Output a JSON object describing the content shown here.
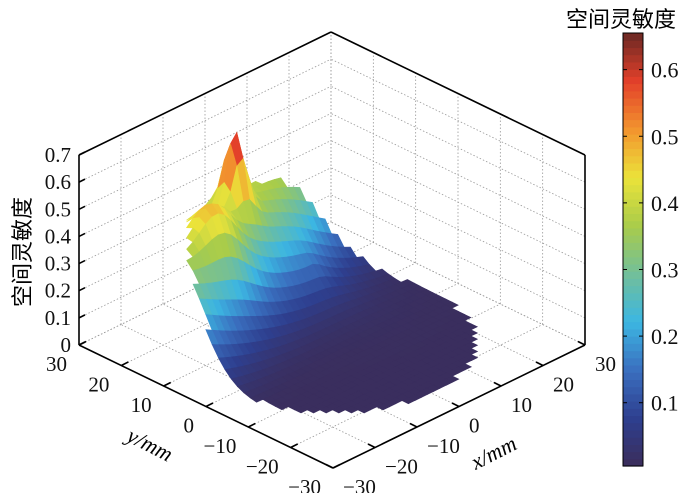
{
  "chart_data": {
    "type": "surface",
    "title": "",
    "xlabel": "x/mm",
    "ylabel": "y/mm",
    "zlabel": "空间灵敏度",
    "colorbar_label": "空间灵敏度",
    "xlim": [
      -30,
      30
    ],
    "ylim": [
      -30,
      30
    ],
    "zlim": [
      0,
      0.7
    ],
    "x_ticks": [
      "−30",
      "−20",
      "−10",
      "0",
      "10",
      "20",
      "30"
    ],
    "x_tick_values": [
      -30,
      -20,
      -10,
      0,
      10,
      20,
      30
    ],
    "y_ticks": [
      "−30",
      "−20",
      "−10",
      "0",
      "10",
      "20",
      "30"
    ],
    "y_tick_values": [
      -30,
      -20,
      -10,
      0,
      10,
      20,
      30
    ],
    "z_ticks": [
      "0",
      "0.1",
      "0.2",
      "0.3",
      "0.4",
      "0.5",
      "0.6",
      "0.7"
    ],
    "z_tick_values": [
      0,
      0.1,
      0.2,
      0.3,
      0.4,
      0.5,
      0.6,
      0.7
    ],
    "colorbar_ticks": [
      "0.1",
      "0.2",
      "0.3",
      "0.4",
      "0.5",
      "0.6"
    ],
    "colorbar_tick_values": [
      0.1,
      0.2,
      0.3,
      0.4,
      0.5,
      0.6
    ],
    "colorbar_range": [
      0.005,
      0.655
    ],
    "grid": true,
    "surface_extent": {
      "shape": "disc",
      "radius_mm": 24,
      "peak_value": 0.65,
      "peak_location_mm": [
        -2,
        21
      ],
      "min_value": 0.01
    },
    "colormap": [
      "#3b2d5a",
      "#2e3f8f",
      "#3a6fbf",
      "#3cb6e2",
      "#72bf9a",
      "#a9cc4a",
      "#ebe33a",
      "#f2942e",
      "#e3402a",
      "#6a2823"
    ]
  }
}
